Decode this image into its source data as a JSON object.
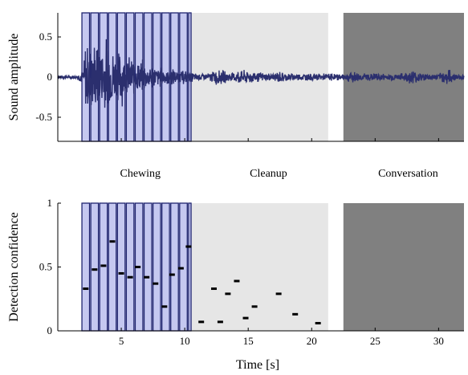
{
  "chart_data": [
    {
      "type": "line",
      "ylabel": "Sound amplitude",
      "xlabel": "",
      "ylim": [
        -0.8,
        0.8
      ],
      "xlim": [
        0,
        32
      ],
      "yticks": [
        {
          "value": 0.5,
          "label": "0.5"
        },
        {
          "value": 0,
          "label": "0"
        },
        {
          "value": -0.5,
          "label": "-0.5"
        }
      ],
      "xticks": [
        5,
        10,
        15,
        20,
        25,
        30
      ],
      "show_xtick_labels": false,
      "grid": false,
      "series": [
        {
          "color": "#2b2f6e",
          "description_of_envelope": "waveform envelope (t, amplitude)",
          "envelope": [
            [
              0.0,
              0.02
            ],
            [
              1.5,
              0.03
            ],
            [
              2.0,
              0.1
            ],
            [
              2.2,
              0.55
            ],
            [
              2.6,
              0.45
            ],
            [
              3.0,
              0.5
            ],
            [
              3.4,
              0.4
            ],
            [
              3.8,
              0.55
            ],
            [
              4.2,
              0.45
            ],
            [
              4.6,
              0.3
            ],
            [
              5.0,
              0.4
            ],
            [
              5.4,
              0.25
            ],
            [
              5.8,
              0.3
            ],
            [
              6.2,
              0.2
            ],
            [
              6.6,
              0.25
            ],
            [
              7.0,
              0.15
            ],
            [
              7.4,
              0.2
            ],
            [
              7.8,
              0.12
            ],
            [
              8.2,
              0.15
            ],
            [
              8.6,
              0.1
            ],
            [
              9.0,
              0.12
            ],
            [
              9.4,
              0.08
            ],
            [
              9.8,
              0.1
            ],
            [
              10.4,
              0.07
            ],
            [
              11.0,
              0.05
            ],
            [
              12.0,
              0.06
            ],
            [
              12.6,
              0.12
            ],
            [
              13.5,
              0.06
            ],
            [
              14.2,
              0.1
            ],
            [
              15.5,
              0.08
            ],
            [
              16.5,
              0.05
            ],
            [
              17.5,
              0.08
            ],
            [
              18.5,
              0.05
            ],
            [
              20.0,
              0.05
            ],
            [
              21.5,
              0.05
            ],
            [
              22.5,
              0.04
            ],
            [
              23.2,
              0.08
            ],
            [
              24.0,
              0.05
            ],
            [
              25.0,
              0.06
            ],
            [
              26.0,
              0.04
            ],
            [
              27.0,
              0.05
            ],
            [
              28.0,
              0.1
            ],
            [
              29.0,
              0.05
            ],
            [
              30.0,
              0.04
            ],
            [
              30.7,
              0.12
            ],
            [
              31.3,
              0.05
            ],
            [
              32.0,
              0.03
            ]
          ]
        }
      ],
      "shaded_regions": [
        {
          "x0": 10.4,
          "x1": 21.3,
          "color": "#e6e6e6"
        },
        {
          "x0": 22.5,
          "x1": 32.0,
          "color": "#808080"
        }
      ],
      "chewing_windows": [
        [
          1.9,
          2.5
        ],
        [
          2.6,
          3.2
        ],
        [
          3.3,
          3.9
        ],
        [
          4.0,
          4.6
        ],
        [
          4.7,
          5.3
        ],
        [
          5.4,
          6.0
        ],
        [
          6.1,
          6.7
        ],
        [
          6.8,
          7.4
        ],
        [
          7.5,
          8.1
        ],
        [
          8.2,
          8.8
        ],
        [
          8.9,
          9.5
        ],
        [
          9.6,
          10.2
        ],
        [
          10.3,
          10.5
        ]
      ],
      "chewing_color": "#c5c8f0"
    },
    {
      "type": "scatter",
      "ylabel": "Detection confidence",
      "xlabel": "Time [s]",
      "ylim": [
        0,
        1
      ],
      "xlim": [
        0,
        32
      ],
      "yticks": [
        {
          "value": 1,
          "label": "1"
        },
        {
          "value": 0.5,
          "label": "0.5"
        },
        {
          "value": 0,
          "label": "0"
        }
      ],
      "xticks": [
        5,
        10,
        15,
        20,
        25,
        30
      ],
      "show_xtick_labels": true,
      "grid": false,
      "points": [
        [
          2.2,
          0.33
        ],
        [
          2.9,
          0.48
        ],
        [
          3.6,
          0.51
        ],
        [
          4.3,
          0.7
        ],
        [
          5.0,
          0.45
        ],
        [
          5.7,
          0.42
        ],
        [
          6.3,
          0.5
        ],
        [
          7.0,
          0.42
        ],
        [
          7.7,
          0.37
        ],
        [
          8.4,
          0.19
        ],
        [
          9.0,
          0.44
        ],
        [
          9.7,
          0.49
        ],
        [
          10.3,
          0.66
        ],
        [
          11.3,
          0.07
        ],
        [
          12.3,
          0.33
        ],
        [
          12.8,
          0.07
        ],
        [
          13.4,
          0.29
        ],
        [
          14.1,
          0.39
        ],
        [
          14.8,
          0.1
        ],
        [
          15.5,
          0.19
        ],
        [
          17.4,
          0.29
        ],
        [
          18.7,
          0.13
        ],
        [
          20.5,
          0.06
        ]
      ],
      "shaded_regions": [
        {
          "x0": 10.4,
          "x1": 21.3,
          "color": "#e6e6e6"
        },
        {
          "x0": 22.5,
          "x1": 32.0,
          "color": "#808080"
        }
      ],
      "chewing_windows": [
        [
          1.9,
          2.5
        ],
        [
          2.6,
          3.2
        ],
        [
          3.3,
          3.9
        ],
        [
          4.0,
          4.6
        ],
        [
          4.7,
          5.3
        ],
        [
          5.4,
          6.0
        ],
        [
          6.1,
          6.7
        ],
        [
          6.8,
          7.4
        ],
        [
          7.5,
          8.1
        ],
        [
          8.2,
          8.8
        ],
        [
          8.9,
          9.5
        ],
        [
          9.6,
          10.2
        ],
        [
          10.3,
          10.5
        ]
      ],
      "chewing_color": "#c5c8f0"
    }
  ],
  "region_labels": [
    {
      "text": "Chewing",
      "x": 6.5
    },
    {
      "text": "Cleanup",
      "x": 16.6
    },
    {
      "text": "Conversation",
      "x": 27.6
    }
  ]
}
